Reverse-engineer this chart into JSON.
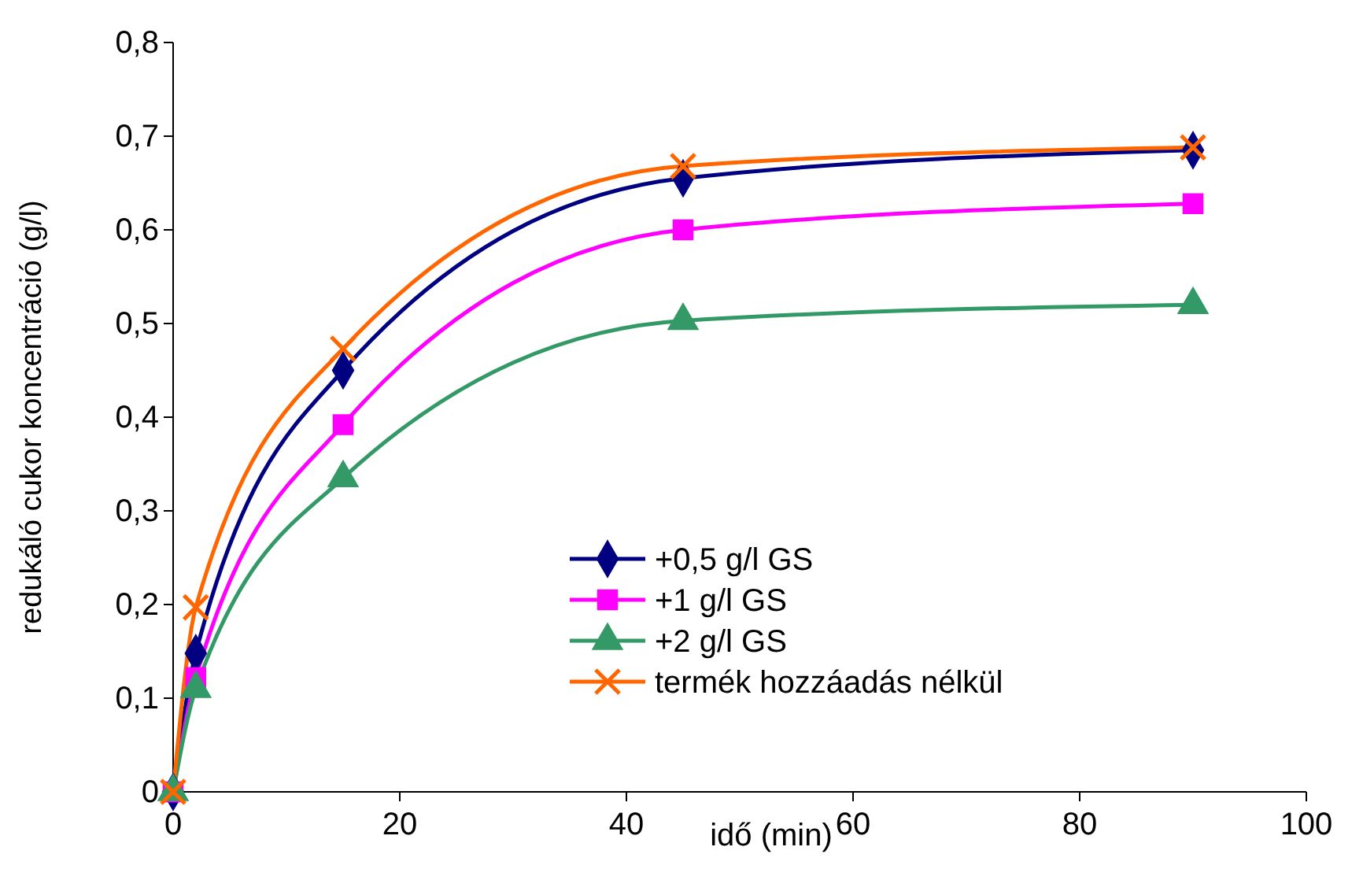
{
  "chart_data": {
    "type": "line",
    "xlabel": "idő (min)",
    "ylabel": "redukáló cukor koncentráció (g/l)",
    "x": [
      0,
      2,
      15,
      45,
      90
    ],
    "xlim": [
      0,
      100
    ],
    "xticks": [
      0,
      20,
      40,
      60,
      80,
      100
    ],
    "ylim": [
      0,
      0.8
    ],
    "yticks": [
      {
        "value": 0,
        "label": "0"
      },
      {
        "value": 0.1,
        "label": "0,1"
      },
      {
        "value": 0.2,
        "label": "0,2"
      },
      {
        "value": 0.3,
        "label": "0,3"
      },
      {
        "value": 0.4,
        "label": "0,4"
      },
      {
        "value": 0.5,
        "label": "0,5"
      },
      {
        "value": 0.6,
        "label": "0,6"
      },
      {
        "value": 0.7,
        "label": "0,7"
      },
      {
        "value": 0.8,
        "label": "0,8"
      }
    ],
    "grid": false,
    "legend": "right",
    "line_style": "solid",
    "series": [
      {
        "name": "+0,5 g/l GS",
        "color": "#000080",
        "marker": "diamond",
        "values": [
          0,
          0.148,
          0.45,
          0.655,
          0.685
        ]
      },
      {
        "name": "+1 g/l GS",
        "color": "#ff00ff",
        "marker": "square",
        "values": [
          0,
          0.122,
          0.392,
          0.6,
          0.628
        ]
      },
      {
        "name": "+2 g/l GS",
        "color": "#339966",
        "marker": "triangle",
        "values": [
          0,
          0.11,
          0.335,
          0.503,
          0.52
        ]
      },
      {
        "name": "termék hozzáadás nélkül",
        "color": "#ff6600",
        "marker": "cross",
        "values": [
          0,
          0.197,
          0.473,
          0.668,
          0.688
        ]
      }
    ]
  }
}
